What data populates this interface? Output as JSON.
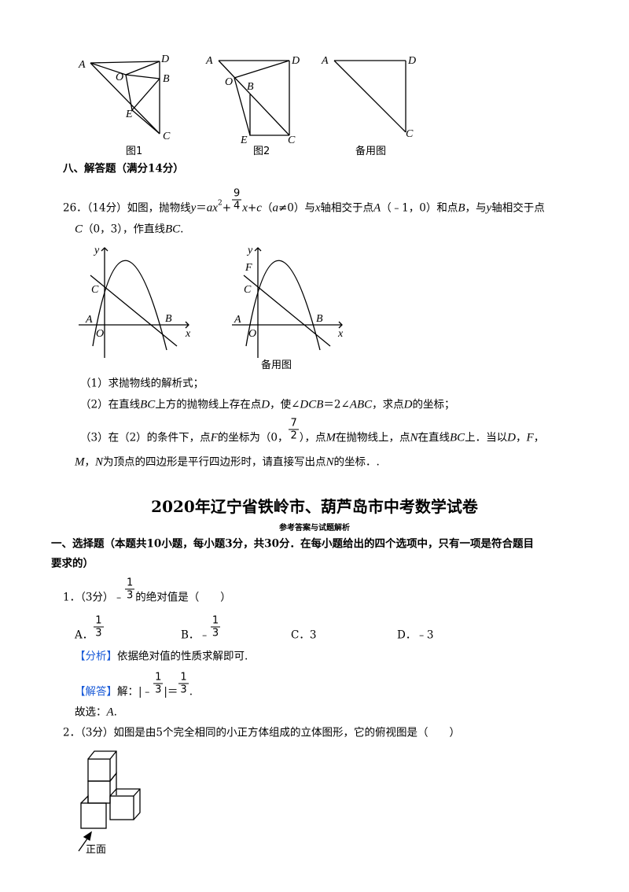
{
  "figures": [
    {
      "labels": [
        "A",
        "D",
        "O",
        "B",
        "E",
        "C"
      ],
      "caption": "图1"
    },
    {
      "labels": [
        "A",
        "D",
        "O",
        "B",
        "E",
        "C"
      ],
      "caption": "图2"
    },
    {
      "labels": [
        "A",
        "D",
        "C"
      ],
      "caption": "备用图"
    },
    {
      "labels": [
        "y",
        "C",
        "A",
        "O",
        "B",
        "x"
      ]
    },
    {
      "labels": [
        "y",
        "F",
        "C",
        "A",
        "O",
        "B",
        "x"
      ],
      "caption": "备用图"
    },
    {
      "caption": "正面"
    }
  ],
  "answer_title": "2020年辽宁省铁岭市、葫芦岛市中考数学试卷",
  "answer_subtitle": "参考答案与试题解析",
  "lines": [
    [
      {
        "bold": "八、解答题（满分14分）"
      }
    ],
    [
      "26．（14分）如图，抛物线",
      {
        "italic": "y"
      },
      "＝",
      {
        "italic": "ax"
      },
      {
        "sup": "2"
      },
      "+",
      {
        "fraction": [
          "9",
          "4"
        ]
      },
      {
        "italic": "x"
      },
      "+",
      {
        "italic": "c"
      },
      "（",
      {
        "italic": "a"
      },
      "≠0）与",
      {
        "italic": "x"
      },
      "轴相交于点",
      {
        "italic": "A"
      },
      "（﹣1，0）和点",
      {
        "italic": "B"
      },
      "，与",
      {
        "italic": "y"
      },
      "轴相交于点"
    ],
    [
      {
        "italic": "C"
      },
      "（0，3），作直线",
      {
        "italic": "BC"
      },
      "."
    ],
    [
      "（1）求抛物线的解析式；"
    ],
    [
      "（2）在直线",
      {
        "italic": "BC"
      },
      "上方的抛物线上存在点",
      {
        "italic": "D"
      },
      "，使∠",
      {
        "italic": "DCB"
      },
      "＝2∠",
      {
        "italic": "ABC"
      },
      "，求点",
      {
        "italic": "D"
      },
      "的坐标；"
    ],
    [
      "（3）在（2）的条件下，点",
      {
        "italic": "F"
      },
      "的坐标为（0，",
      {
        "fraction": [
          "7",
          "2"
        ]
      },
      "），点",
      {
        "italic": "M"
      },
      "在抛物线上，点",
      {
        "italic": "N"
      },
      "在直线",
      {
        "italic": "BC"
      },
      "上．当以",
      {
        "italic": "D"
      },
      "，",
      {
        "italic": "F"
      },
      "，"
    ],
    [
      {
        "italic": "M"
      },
      "，",
      {
        "italic": "N"
      },
      "为顶点的四边形是平行四边形时，请直接写出点",
      {
        "italic": "N"
      },
      "的坐标．."
    ],
    [
      {
        "bold": "一、选择题（本题共10小题，每小题3分，共30分．在每小题给出的四个选项中，只有一项是符合题目"
      }
    ],
    [
      {
        "bold": "要求的）"
      }
    ],
    [
      "1．（3分）﹣",
      {
        "fraction": [
          "1",
          "3"
        ]
      },
      "的绝对值是（　　）"
    ],
    [
      "A．",
      {
        "fraction": [
          "1",
          "3"
        ]
      }
    ],
    [
      "B．﹣",
      {
        "fraction": [
          "1",
          "3"
        ]
      }
    ],
    [
      "C．3"
    ],
    [
      "D．﹣3"
    ],
    [
      {
        "blue": "【分析】"
      },
      "依据绝对值的性质求解即可."
    ],
    [
      {
        "blue": "【解答】"
      },
      "解：|﹣",
      {
        "fraction": [
          "1",
          "3"
        ]
      },
      "|＝",
      {
        "fraction": [
          "1",
          "3"
        ]
      },
      "."
    ],
    [
      "故选：",
      {
        "italic": "A"
      },
      "."
    ],
    [
      "2．（3分）如图是由5个完全相同的小正方体组成的立体图形，它的俯视图是（　　）"
    ]
  ]
}
